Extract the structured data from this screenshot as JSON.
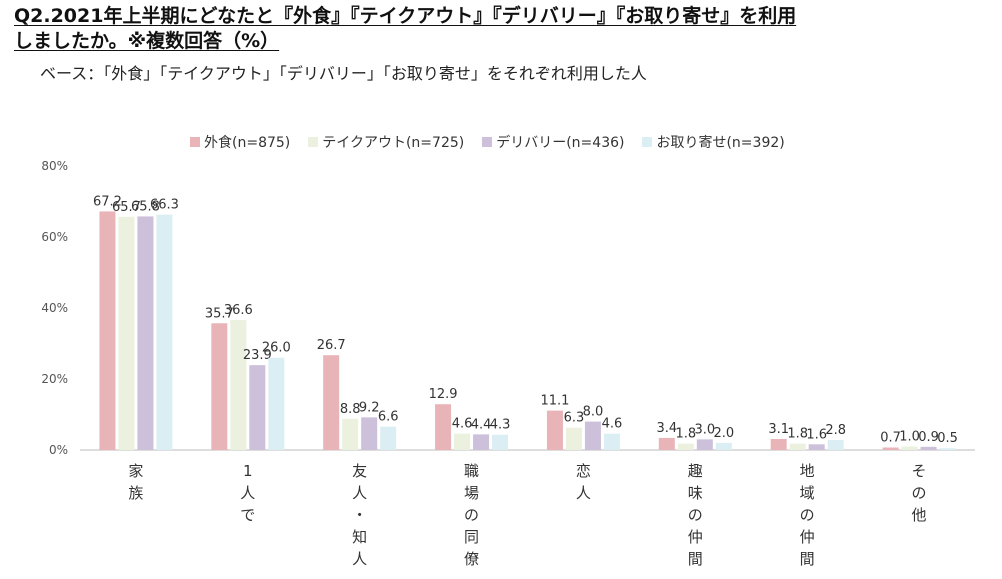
{
  "title_part1": "Q2.2021年上半期にどなたと『外食』『テイクアウト』『デリバリー』『お取り寄せ』を利用",
  "title_part2": "しましたか。※複数回答（%）",
  "base": "ベース：「外食」「テイクアウト」「デリバリー」「お取り寄せ」をそれぞれ利用した人",
  "chart_data": {
    "type": "bar",
    "categories": [
      "家族",
      "1人で",
      "友人・知人",
      "職場の同僚",
      "恋人",
      "趣味の仲間",
      "地域の仲間",
      "その他"
    ],
    "category_display": [
      [
        "家",
        "族"
      ],
      [
        "1",
        "人",
        "で"
      ],
      [
        "友",
        "人",
        "・",
        "知",
        "人"
      ],
      [
        "職",
        "場",
        "の",
        "同",
        "僚"
      ],
      [
        "恋",
        "人"
      ],
      [
        "趣",
        "味",
        "の",
        "仲",
        "間"
      ],
      [
        "地",
        "域",
        "の",
        "仲",
        "間"
      ],
      [
        "そ",
        "の",
        "他"
      ]
    ],
    "series": [
      {
        "name": "外食(n=875)",
        "color": "#e8b4b8",
        "values": [
          67.2,
          35.7,
          26.7,
          12.9,
          11.1,
          3.4,
          3.1,
          0.7
        ]
      },
      {
        "name": "テイクアウト(n=725)",
        "color": "#ebf1de",
        "values": [
          65.7,
          36.6,
          8.8,
          4.6,
          6.3,
          1.8,
          1.8,
          1.0
        ]
      },
      {
        "name": "デリバリー(n=436)",
        "color": "#ccc0da",
        "values": [
          65.8,
          23.9,
          9.2,
          4.4,
          8.0,
          3.0,
          1.6,
          0.9
        ]
      },
      {
        "name": "お取り寄せ(n=392)",
        "color": "#dbeef4",
        "values": [
          66.3,
          26.0,
          6.6,
          4.3,
          4.6,
          2.0,
          2.8,
          0.5
        ]
      }
    ],
    "yticks": [
      "0%",
      "20%",
      "40%",
      "60%",
      "80%"
    ],
    "ylim": [
      0,
      80
    ],
    "legend_position": "top"
  }
}
